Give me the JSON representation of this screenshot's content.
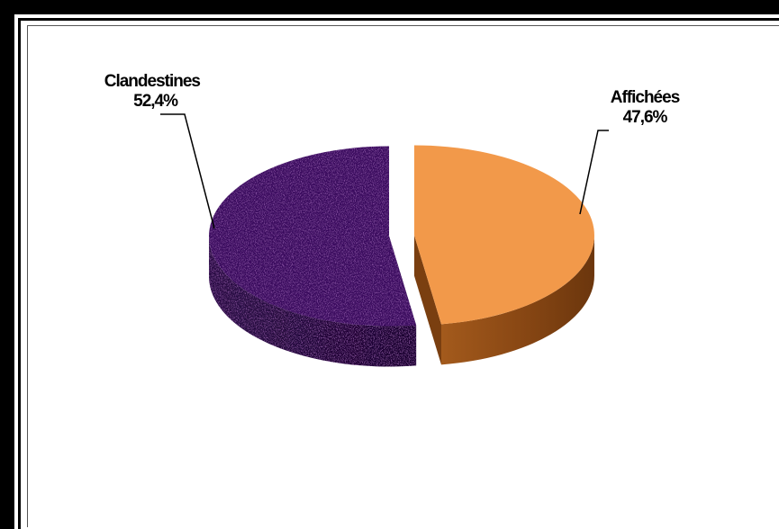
{
  "chart_data": {
    "type": "pie",
    "style": "3d-exploded",
    "categories": [
      "Clandestines",
      "Affichées"
    ],
    "values": [
      52.4,
      47.6
    ],
    "unit": "%",
    "data_labels": [
      "52,4%",
      "47,6%"
    ],
    "colors": {
      "Clandestines": "#3b0e5e",
      "Affichées": "#f2994a"
    },
    "legend": "none",
    "title": ""
  }
}
